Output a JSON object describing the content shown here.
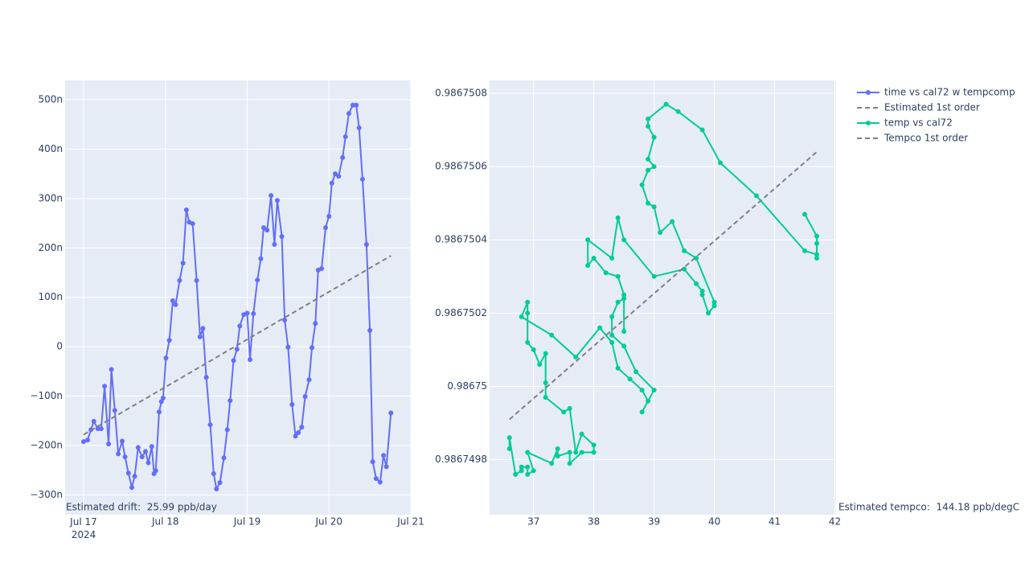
{
  "chart_data": [
    {
      "type": "line",
      "annotation": "Estimated drift:  25.99 ppb/day",
      "xlim": [
        "2024-07-16 18:35",
        "2024-07-21 00:00"
      ],
      "xticks": [
        {
          "value": "2024-07-17",
          "label": "Jul 17\n2024"
        },
        {
          "value": "2024-07-18",
          "label": "Jul 18"
        },
        {
          "value": "2024-07-19",
          "label": "Jul 19"
        },
        {
          "value": "2024-07-20",
          "label": "Jul 20"
        },
        {
          "value": "2024-07-21",
          "label": "Jul 21"
        }
      ],
      "ylim": [
        -340,
        539
      ],
      "yticks": [
        {
          "value": -300,
          "label": "−300n"
        },
        {
          "value": -200,
          "label": "−200n"
        },
        {
          "value": -100,
          "label": "−100n"
        },
        0,
        {
          "value": 100,
          "label": "100n"
        },
        {
          "value": 200,
          "label": "200n"
        },
        {
          "value": 300,
          "label": "300n"
        },
        {
          "value": 400,
          "label": "400n"
        },
        {
          "value": 500,
          "label": "500n"
        }
      ],
      "grid": true,
      "series": [
        {
          "name": "time vs cal72 w tempcomp",
          "color": "#636efa",
          "markers": true,
          "dash": false,
          "x": [
            "2024-07-17 00:00",
            "2024-07-17 01:10",
            "2024-07-17 02:10",
            "2024-07-17 03:00",
            "2024-07-17 04:10",
            "2024-07-17 05:10",
            "2024-07-17 06:10",
            "2024-07-17 07:20",
            "2024-07-17 08:10",
            "2024-07-17 09:10",
            "2024-07-17 10:10",
            "2024-07-17 11:20",
            "2024-07-17 12:10",
            "2024-07-17 13:10",
            "2024-07-17 14:10",
            "2024-07-17 15:00",
            "2024-07-17 16:00",
            "2024-07-17 17:10",
            "2024-07-17 18:10",
            "2024-07-17 19:00",
            "2024-07-17 20:00",
            "2024-07-17 20:40",
            "2024-07-17 21:10",
            "2024-07-17 22:10",
            "2024-07-17 22:50",
            "2024-07-17 23:20",
            "2024-07-18 00:10",
            "2024-07-18 01:10",
            "2024-07-18 02:10",
            "2024-07-18 03:00",
            "2024-07-18 04:10",
            "2024-07-18 05:10",
            "2024-07-18 06:10",
            "2024-07-18 07:00",
            "2024-07-18 08:00",
            "2024-07-18 09:10",
            "2024-07-18 10:10",
            "2024-07-18 11:00",
            "2024-07-18 12:00",
            "2024-07-18 13:10",
            "2024-07-18 14:10",
            "2024-07-18 15:00",
            "2024-07-18 16:00",
            "2024-07-18 17:10",
            "2024-07-18 18:10",
            "2024-07-18 19:00",
            "2024-07-18 20:00",
            "2024-07-18 21:00",
            "2024-07-18 21:50",
            "2024-07-18 23:00",
            "2024-07-19 00:00",
            "2024-07-19 00:50",
            "2024-07-19 01:50",
            "2024-07-19 03:00",
            "2024-07-19 04:00",
            "2024-07-19 04:50",
            "2024-07-19 05:50",
            "2024-07-19 07:00",
            "2024-07-19 08:00",
            "2024-07-19 08:50",
            "2024-07-19 10:10",
            "2024-07-19 11:00",
            "2024-07-19 12:00",
            "2024-07-19 13:10",
            "2024-07-19 14:10",
            "2024-07-19 15:00",
            "2024-07-19 16:00",
            "2024-07-19 17:00",
            "2024-07-19 18:10",
            "2024-07-19 19:00",
            "2024-07-19 20:00",
            "2024-07-19 20:50",
            "2024-07-19 21:50",
            "2024-07-19 23:00",
            "2024-07-20 00:00",
            "2024-07-20 00:50",
            "2024-07-20 01:50",
            "2024-07-20 02:50",
            "2024-07-20 04:00",
            "2024-07-20 04:50",
            "2024-07-20 05:50",
            "2024-07-20 07:00",
            "2024-07-20 08:00",
            "2024-07-20 08:50",
            "2024-07-20 09:50",
            "2024-07-20 11:00",
            "2024-07-20 12:00",
            "2024-07-20 12:50",
            "2024-07-20 13:50",
            "2024-07-20 15:00",
            "2024-07-20 16:00",
            "2024-07-20 16:50",
            "2024-07-20 18:10"
          ],
          "values": [
            -192,
            -189,
            -168,
            -151,
            -166,
            -166,
            -80,
            -197,
            -46,
            -129,
            -217,
            -191,
            -223,
            -256,
            -285,
            -262,
            -204,
            -223,
            -212,
            -235,
            -202,
            -257,
            -251,
            -132,
            -111,
            -104,
            -23,
            13,
            93,
            85,
            134,
            169,
            277,
            252,
            249,
            134,
            20,
            37,
            -62,
            -158,
            -257,
            -288,
            -275,
            -225,
            -168,
            -109,
            -28,
            -5,
            42,
            65,
            68,
            -26,
            67,
            135,
            178,
            241,
            236,
            306,
            207,
            296,
            223,
            54,
            -1,
            -117,
            -181,
            -174,
            -163,
            -101,
            -67,
            -2,
            47,
            155,
            158,
            241,
            264,
            331,
            350,
            345,
            383,
            425,
            472,
            489,
            489,
            443,
            339,
            207,
            33,
            -233,
            -267,
            -274,
            -220,
            -243,
            -134
          ]
        },
        {
          "name": "Estimated 1st order",
          "color": "#808080",
          "markers": false,
          "dash": true,
          "x": [
            "2024-07-17 00:00",
            "2024-07-20 18:10"
          ],
          "values": [
            -178,
            184
          ]
        }
      ]
    },
    {
      "type": "line",
      "annotation": "Estimated tempco:  144.18 ppb/degC",
      "xlim": [
        36.27,
        42.02
      ],
      "xticks": [
        37,
        38,
        39,
        40,
        41,
        42
      ],
      "ylim": [
        0.98674965,
        0.986750835
      ],
      "yticks": [
        0.9867498,
        0.98675,
        0.9867502,
        0.9867504,
        0.9867506,
        0.9867508
      ],
      "grid": true,
      "series": [
        {
          "name": "temp vs cal72",
          "color": "#00cc96",
          "markers": true,
          "dash": false,
          "x": [
            36.6,
            36.6,
            36.7,
            36.8,
            36.8,
            36.9,
            36.9,
            37.0,
            36.9,
            37.3,
            37.4,
            37.4,
            37.6,
            37.6,
            37.8,
            38.0,
            38.0,
            37.8,
            37.7,
            37.6,
            37.5,
            37.2,
            37.2,
            37.2,
            37.1,
            37.0,
            36.9,
            36.9,
            36.9,
            36.8,
            37.3,
            37.7,
            38.1,
            38.3,
            38.4,
            38.6,
            38.8,
            38.9,
            38.8,
            39.0,
            38.7,
            38.5,
            38.3,
            38.3,
            38.4,
            38.5,
            38.5,
            38.5,
            38.4,
            38.2,
            38.0,
            37.9,
            37.9,
            38.3,
            38.4,
            38.5,
            39.0,
            39.5,
            39.7,
            39.8,
            39.8,
            39.9,
            40.0,
            40.0,
            39.7,
            39.5,
            39.3,
            39.1,
            39.0,
            38.9,
            38.8,
            38.9,
            39.0,
            38.9,
            39.0,
            38.9,
            38.9,
            39.2,
            39.4,
            39.8,
            40.1,
            40.7,
            41.5,
            41.7,
            41.7,
            41.7,
            41.7,
            41.5
          ],
          "values": [
            0.98674983,
            0.98674986,
            0.98674976,
            0.98674977,
            0.98674978,
            0.98674978,
            0.98674976,
            0.98674977,
            0.98674982,
            0.98674979,
            0.98674983,
            0.98674981,
            0.98674982,
            0.98674979,
            0.98674982,
            0.98674982,
            0.98674984,
            0.98674987,
            0.98674982,
            0.98674994,
            0.98674993,
            0.98674997,
            0.98675001,
            0.98675009,
            0.98675006,
            0.9867501,
            0.98675012,
            0.9867502,
            0.98675023,
            0.98675019,
            0.98675014,
            0.98675008,
            0.98675016,
            0.98675012,
            0.98675005,
            0.98675002,
            0.98674999,
            0.98674996,
            0.98674993,
            0.98674999,
            0.98675004,
            0.98675011,
            0.98675014,
            0.98675019,
            0.98675023,
            0.98675024,
            0.98675015,
            0.98675025,
            0.9867503,
            0.98675031,
            0.98675035,
            0.98675033,
            0.9867504,
            0.98675035,
            0.98675046,
            0.9867504,
            0.9867503,
            0.98675032,
            0.98675028,
            0.98675026,
            0.98675025,
            0.9867502,
            0.98675022,
            0.98675023,
            0.98675035,
            0.98675037,
            0.98675045,
            0.98675042,
            0.98675049,
            0.9867505,
            0.98675055,
            0.98675059,
            0.9867506,
            0.98675062,
            0.98675068,
            0.98675071,
            0.98675073,
            0.98675077,
            0.98675075,
            0.9867507,
            0.98675061,
            0.98675052,
            0.98675037,
            0.98675036,
            0.98675035,
            0.98675039,
            0.98675041,
            0.98675047
          ]
        },
        {
          "name": "Tempco 1st order",
          "color": "#808080",
          "markers": false,
          "dash": true,
          "x": [
            36.6,
            41.7
          ],
          "values": [
            0.98674991,
            0.98675064
          ]
        }
      ]
    }
  ]
}
